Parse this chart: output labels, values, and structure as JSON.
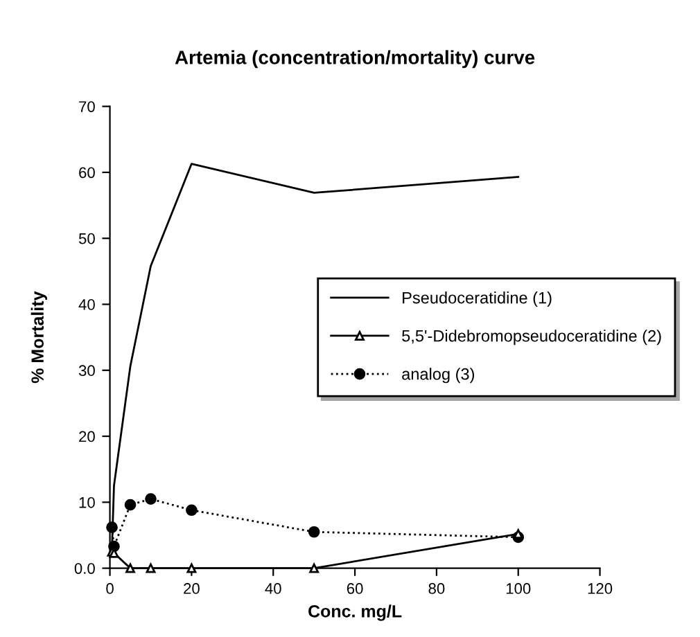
{
  "chart_data": {
    "type": "line",
    "title": "Artemia (concentration/mortality) curve",
    "xlabel": "Conc. mg/L",
    "ylabel": "% Mortality",
    "xlim": [
      0,
      120
    ],
    "xticks": [
      0,
      20,
      40,
      60,
      80,
      100,
      120
    ],
    "ylim": [
      0,
      70
    ],
    "yticks": [
      {
        "value": 0,
        "label": "0.0"
      },
      10,
      20,
      30,
      40,
      50,
      60,
      70
    ],
    "grid": false,
    "legend": "right",
    "series": [
      {
        "name": "Pseudoceratidine (1)",
        "color": "#000000",
        "marker": "none",
        "line_style": "solid",
        "x": [
          0.5,
          1,
          5,
          10,
          20,
          50,
          100
        ],
        "values": [
          3,
          12.5,
          30.6,
          45.8,
          61.3,
          56.9,
          59.3
        ]
      },
      {
        "name": "5,5'-Didebromopseudoceratidine (2)",
        "color": "#000000",
        "marker": "triangle",
        "line_style": "solid",
        "x": [
          0.5,
          1,
          5,
          10,
          20,
          50,
          100
        ],
        "values": [
          2.5,
          2.3,
          0,
          0,
          0,
          0,
          5.2
        ]
      },
      {
        "name": "analog (3)",
        "color": "#000000",
        "marker": "circle",
        "line_style": "dotted",
        "x": [
          0.5,
          1,
          5,
          10,
          20,
          50,
          100
        ],
        "values": [
          6.2,
          3.3,
          9.6,
          10.5,
          8.8,
          5.5,
          4.7
        ]
      }
    ]
  }
}
